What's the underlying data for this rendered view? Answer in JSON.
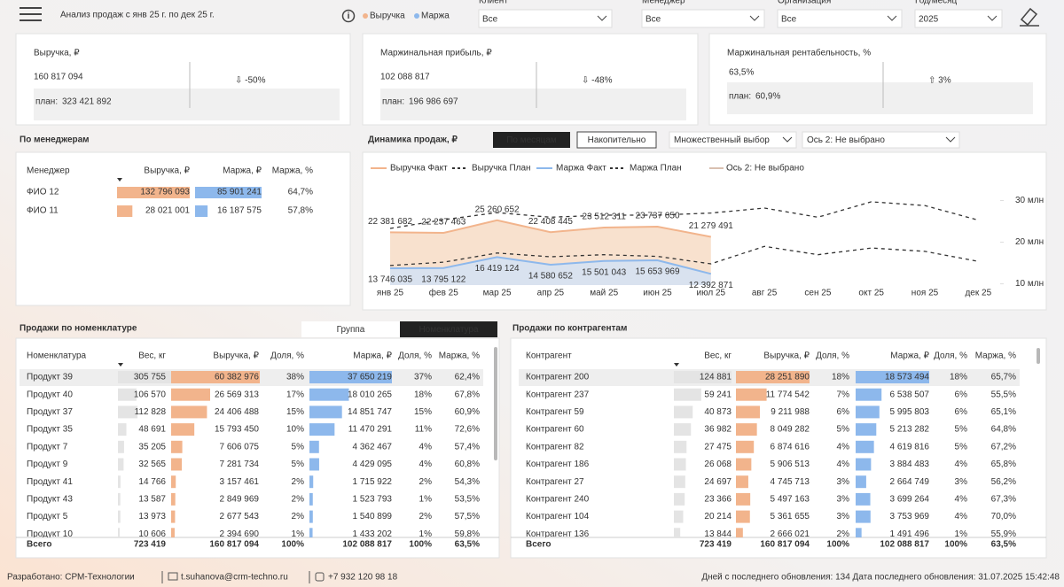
{
  "header": {
    "title": "Анализ продаж с янв 25 г. по дек 25 г.",
    "legend": [
      {
        "name": "Выручка",
        "color": "#f2b48c"
      },
      {
        "name": "Маржа",
        "color": "#8db8ec"
      }
    ],
    "filters": [
      {
        "label": "Клиент",
        "value": "Все"
      },
      {
        "label": "Менеджер",
        "value": "Все"
      },
      {
        "label": "Организация",
        "value": "Все"
      },
      {
        "label": "Год/месяц",
        "value": "2025"
      }
    ]
  },
  "kpis": [
    {
      "title": "Выручка, ₽",
      "value": "160 817 094",
      "change": "⇩ -50%",
      "plan_label": "план:",
      "plan": "323 421 892"
    },
    {
      "title": "Маржинальная прибыль, ₽",
      "value": "102 088 817",
      "change": "⇩ -48%",
      "plan_label": "план:",
      "plan": "196 986 697"
    },
    {
      "title": "Маржинальная рентабельность, %",
      "value": "63,5%",
      "change": "⇧ 3%",
      "plan_label": "план:",
      "plan": "60,9%"
    }
  ],
  "managers": {
    "title": "По менеджерам",
    "columns": [
      "Менеджер",
      "Выручка, ₽",
      "Маржа, ₽",
      "Маржа, %"
    ],
    "rows": [
      [
        "ФИО 12",
        "132 796 093",
        "85 901 241",
        "64,7%"
      ],
      [
        "ФИО 11",
        "28 021 001",
        "16 187 575",
        "57,8%"
      ]
    ]
  },
  "chart_data": {
    "type": "line",
    "title": "Динамика продаж, ₽",
    "buttons": [
      "По месяцам",
      "Накопительно"
    ],
    "dropdowns": [
      "Множественный выбор",
      "Ось 2: Не выбрано"
    ],
    "axis2_legend": "Ось 2: Не выбрано",
    "categories": [
      "янв 25",
      "фев 25",
      "мар 25",
      "апр 25",
      "май 25",
      "июн 25",
      "июл 25",
      "авг 25",
      "сен 25",
      "окт 25",
      "ноя 25",
      "дек 25"
    ],
    "ylim": [
      8000000,
      35000000
    ],
    "yticks": [
      {
        "value": 10000000,
        "label": "10 млн"
      },
      {
        "value": 20000000,
        "label": "20 млн"
      },
      {
        "value": 30000000,
        "label": "30 млн"
      }
    ],
    "series": [
      {
        "name": "Выручка Факт",
        "color": "#f2b48c",
        "area_color": "#f7dcc6",
        "values": [
          22381682,
          22237463,
          25260652,
          22408445,
          23512311,
          23737050,
          21279491,
          null,
          null,
          null,
          null,
          null
        ],
        "value_labels": [
          "22 381 682",
          "22 237 463",
          "25 260 652",
          "22 408 445",
          "23 512 311",
          "23 737 050",
          "21 279 491",
          null,
          null,
          null,
          null,
          null
        ]
      },
      {
        "name": "Выручка План",
        "color": "#333333",
        "dashed": true,
        "values": [
          23300000,
          25400000,
          27100000,
          26000000,
          26500000,
          26500000,
          27000000,
          28200000,
          26000000,
          29700000,
          28800000,
          25300000
        ]
      },
      {
        "name": "Маржа Факт",
        "color": "#8db8ec",
        "area_color": "#d3e2f4",
        "values": [
          13746035,
          13795122,
          16419124,
          14580652,
          15501043,
          15653969,
          12392871,
          null,
          null,
          null,
          null,
          null
        ],
        "value_labels": [
          "13 746 035",
          "13 795 122",
          "16 419 124",
          "14 580 652",
          "15 501 043",
          "15 653 969",
          "12 392 871",
          null,
          null,
          null,
          null,
          null
        ]
      },
      {
        "name": "Маржа План",
        "color": "#333333",
        "dashed": true,
        "values": [
          14400000,
          15200000,
          17400000,
          16500000,
          17000000,
          16600000,
          14800000,
          19000000,
          17000000,
          18600000,
          17800000,
          15400000
        ]
      }
    ]
  },
  "nomenclature": {
    "title": "Продажи по номенклатуре",
    "toggles": [
      "Группа",
      "Номенклатура"
    ],
    "columns": [
      "Номенклатура",
      "Вес, кг",
      "Выручка, ₽",
      "Доля, %",
      "Маржа, ₽",
      "Доля, %",
      "Маржа, %"
    ],
    "rows": [
      [
        "Продукт 39",
        "305 755",
        "60 382 976",
        "38%",
        "37 650 219",
        "37%",
        "62,4%"
      ],
      [
        "Продукт 40",
        "106 570",
        "26 569 313",
        "17%",
        "18 010 265",
        "18%",
        "67,8%"
      ],
      [
        "Продукт 37",
        "112 828",
        "24 406 488",
        "15%",
        "14 851 747",
        "15%",
        "60,9%"
      ],
      [
        "Продукт 35",
        "48 691",
        "15 793 450",
        "10%",
        "11 470 291",
        "11%",
        "72,6%"
      ],
      [
        "Продукт 7",
        "35 205",
        "7 606 075",
        "5%",
        "4 362 467",
        "4%",
        "57,4%"
      ],
      [
        "Продукт 9",
        "32 565",
        "7 281 734",
        "5%",
        "4 429 095",
        "4%",
        "60,8%"
      ],
      [
        "Продукт 41",
        "14 766",
        "3 157 461",
        "2%",
        "1 715 922",
        "2%",
        "54,3%"
      ],
      [
        "Продукт 43",
        "13 587",
        "2 849 969",
        "2%",
        "1 523 793",
        "1%",
        "53,5%"
      ],
      [
        "Продукт 5",
        "13 973",
        "2 677 543",
        "2%",
        "1 540 899",
        "2%",
        "57,5%"
      ],
      [
        "Продукт 10",
        "10 606",
        "2 394 690",
        "1%",
        "1 433 202",
        "1%",
        "59,8%"
      ]
    ],
    "total": [
      "Всего",
      "723 419",
      "160 817 094",
      "100%",
      "102 088 817",
      "100%",
      "63,5%"
    ]
  },
  "contractors": {
    "title": "Продажи по контрагентам",
    "columns": [
      "Контрагент",
      "Вес, кг",
      "Выручка, ₽",
      "Доля, %",
      "Маржа, ₽",
      "Доля, %",
      "Маржа, %"
    ],
    "rows": [
      [
        "Контрагент 200",
        "124 881",
        "28 251 890",
        "18%",
        "18 573 494",
        "18%",
        "65,7%"
      ],
      [
        "Контрагент 237",
        "59 241",
        "11 774 542",
        "7%",
        "6 538 507",
        "6%",
        "55,5%"
      ],
      [
        "Контрагент 59",
        "40 873",
        "9 211 988",
        "6%",
        "5 995 803",
        "6%",
        "65,1%"
      ],
      [
        "Контрагент 60",
        "36 982",
        "8 049 282",
        "5%",
        "5 213 282",
        "5%",
        "64,8%"
      ],
      [
        "Контрагент 82",
        "27 475",
        "6 874 616",
        "4%",
        "4 619 816",
        "5%",
        "67,2%"
      ],
      [
        "Контрагент 186",
        "26 068",
        "5 906 513",
        "4%",
        "3 884 483",
        "4%",
        "65,8%"
      ],
      [
        "Контрагент 27",
        "24 697",
        "4 745 713",
        "3%",
        "2 664 749",
        "3%",
        "56,2%"
      ],
      [
        "Контрагент 240",
        "23 366",
        "5 497 163",
        "3%",
        "3 699 264",
        "4%",
        "67,3%"
      ],
      [
        "Контрагент 104",
        "20 214",
        "5 361 655",
        "3%",
        "3 753 969",
        "4%",
        "70,0%"
      ],
      [
        "Контрагент 136",
        "13 844",
        "2 666 021",
        "2%",
        "1 491 496",
        "1%",
        "55,9%"
      ]
    ],
    "total": [
      "Всего",
      "723 419",
      "160 817 094",
      "100%",
      "102 088 817",
      "100%",
      "63,5%"
    ]
  },
  "footer": {
    "developer": "Разработано: СРМ-Технологии",
    "email": "t.suhanova@crm-techno.ru",
    "phone": "+7 932 120 98 18",
    "update": "Дней с последнего обновления: 134 Дата последнего обновления: 31.07.2025 15:42:48"
  }
}
